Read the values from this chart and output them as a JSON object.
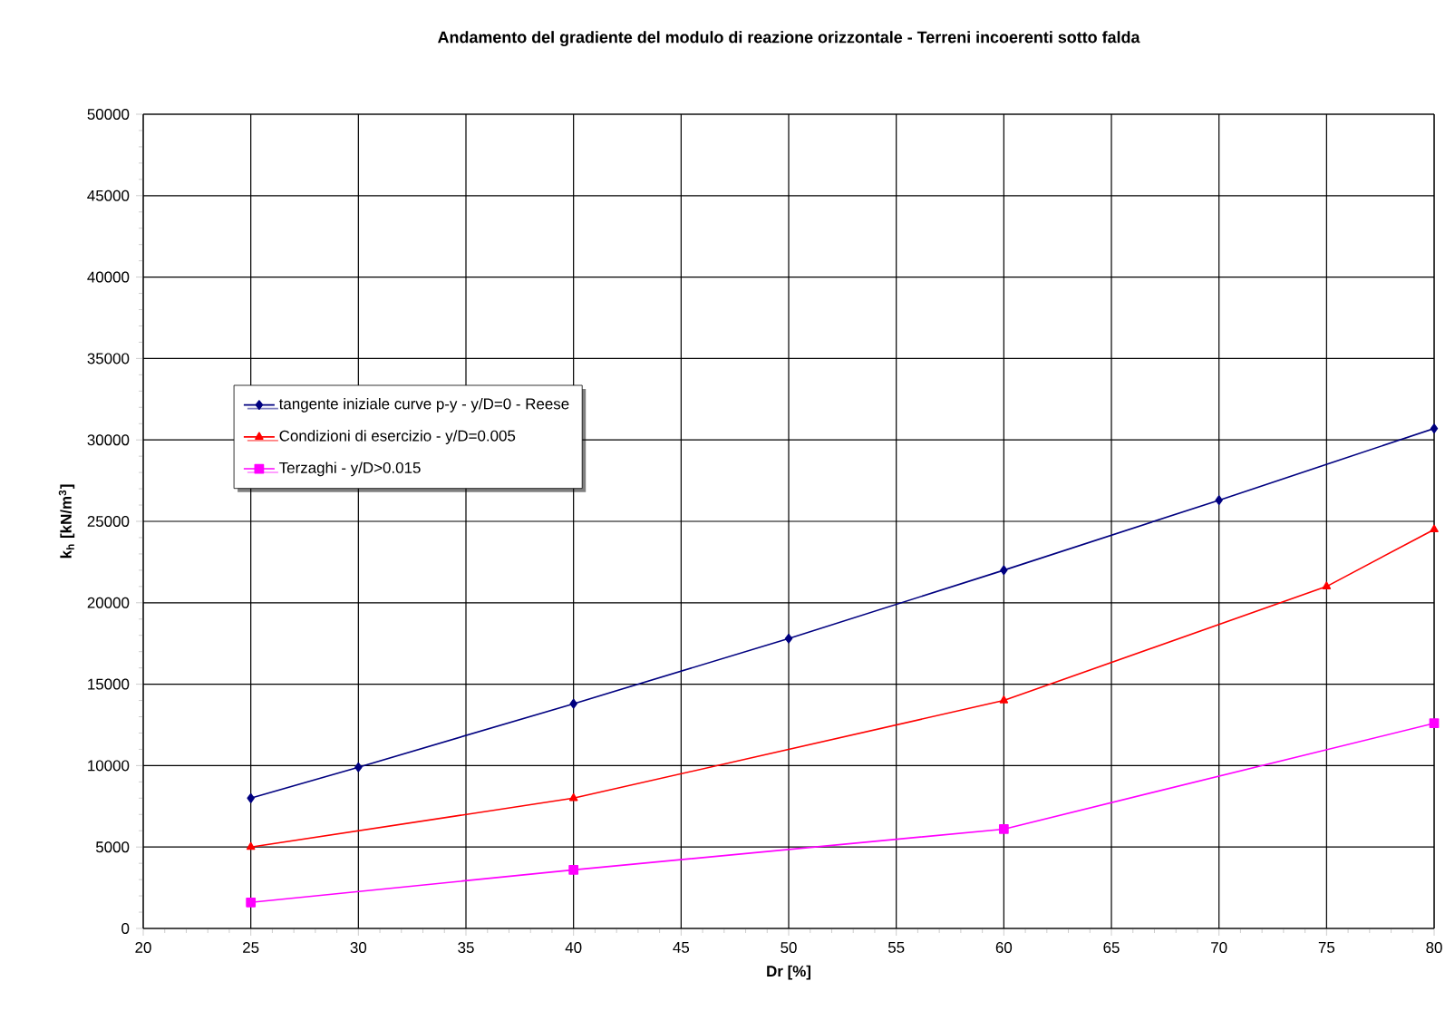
{
  "chart_data": {
    "type": "line",
    "title": "Andamento del gradiente del modulo di reazione orizzontale - Terreni incoerenti sotto falda",
    "xlabel": "Dr [%]",
    "ylabel": "k$_{h}$ [kN/m$^{3}$]",
    "xlim": [
      20,
      80
    ],
    "xticks": [
      20,
      25,
      30,
      35,
      40,
      45,
      50,
      55,
      60,
      65,
      70,
      75,
      80
    ],
    "ylim": [
      0,
      50000
    ],
    "yticks": [
      0,
      5000,
      10000,
      15000,
      20000,
      25000,
      30000,
      35000,
      40000,
      45000,
      50000
    ],
    "grid": true,
    "legend": "left",
    "series": [
      {
        "name": "tangente iniziale curve p-y - y/D=0 - Reese",
        "color": "#000080",
        "marker": "diamond",
        "x": [
          25,
          30,
          40,
          50,
          60,
          70,
          80
        ],
        "values": [
          8000,
          9900,
          13800,
          17800,
          22000,
          26300,
          30700
        ]
      },
      {
        "name": "Condizioni di esercizio - y/D=0.005",
        "color": "#ff0000",
        "marker": "triangle",
        "x": [
          25,
          40,
          60,
          75,
          80
        ],
        "values": [
          5000,
          8000,
          14000,
          21000,
          24500
        ]
      },
      {
        "name": "Terzaghi - y/D>0.015",
        "color": "#ff00ff",
        "marker": "square",
        "x": [
          25,
          40,
          60,
          80
        ],
        "values": [
          1600,
          3600,
          6100,
          12600
        ]
      }
    ]
  }
}
